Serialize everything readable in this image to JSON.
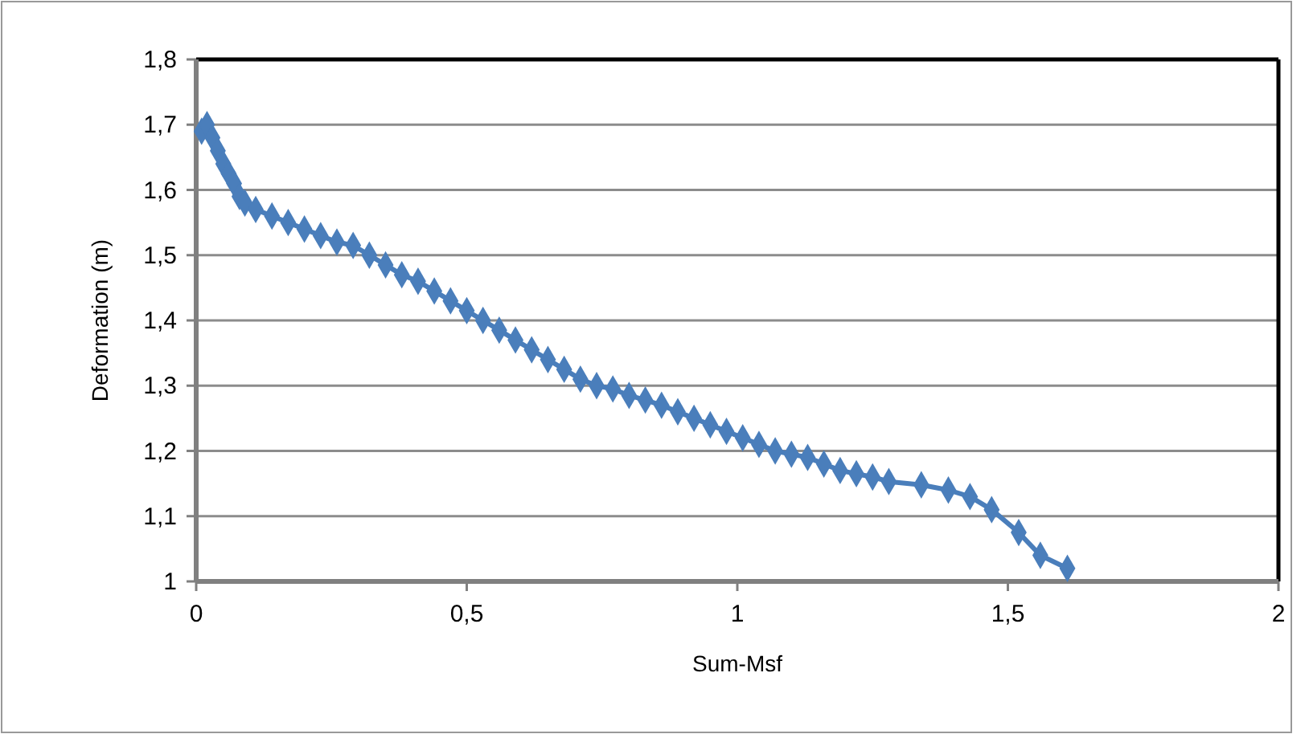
{
  "chart_data": {
    "type": "line",
    "xlabel": "Sum-Msf",
    "ylabel": "Deformation (m)",
    "xlim": [
      0,
      2
    ],
    "xticks": [
      0,
      {
        "value": 0.5,
        "label": "0,5"
      },
      1,
      {
        "value": 1.5,
        "label": "1,5"
      },
      2
    ],
    "ylim": [
      1,
      1.8
    ],
    "yticks": [
      1,
      {
        "value": 1.1,
        "label": "1,1"
      },
      {
        "value": 1.2,
        "label": "1,2"
      },
      {
        "value": 1.3,
        "label": "1,3"
      },
      {
        "value": 1.4,
        "label": "1,4"
      },
      {
        "value": 1.5,
        "label": "1,5"
      },
      {
        "value": 1.6,
        "label": "1,6"
      },
      {
        "value": 1.7,
        "label": "1,7"
      },
      {
        "value": 1.8,
        "label": "1,8"
      }
    ],
    "grid": "y",
    "marker": "diamond",
    "series": [
      {
        "color": "#4a7ebb",
        "x": [
          0.01,
          0.02,
          0.03,
          0.04,
          0.05,
          0.06,
          0.07,
          0.08,
          0.09,
          0.11,
          0.14,
          0.17,
          0.2,
          0.23,
          0.26,
          0.29,
          0.32,
          0.35,
          0.38,
          0.41,
          0.44,
          0.47,
          0.5,
          0.53,
          0.56,
          0.59,
          0.62,
          0.65,
          0.68,
          0.71,
          0.74,
          0.77,
          0.8,
          0.83,
          0.86,
          0.89,
          0.92,
          0.95,
          0.98,
          1.01,
          1.04,
          1.07,
          1.1,
          1.13,
          1.16,
          1.19,
          1.22,
          1.25,
          1.28,
          1.34,
          1.39,
          1.43,
          1.47,
          1.52,
          1.56,
          1.61
        ],
        "values": [
          1.69,
          1.7,
          1.68,
          1.66,
          1.64,
          1.625,
          1.61,
          1.59,
          1.58,
          1.57,
          1.56,
          1.55,
          1.54,
          1.53,
          1.52,
          1.515,
          1.5,
          1.485,
          1.47,
          1.46,
          1.445,
          1.43,
          1.415,
          1.4,
          1.385,
          1.37,
          1.355,
          1.34,
          1.325,
          1.31,
          1.3,
          1.295,
          1.285,
          1.278,
          1.27,
          1.26,
          1.25,
          1.24,
          1.23,
          1.22,
          1.21,
          1.2,
          1.195,
          1.19,
          1.18,
          1.17,
          1.165,
          1.16,
          1.153,
          1.148,
          1.14,
          1.13,
          1.11,
          1.075,
          1.04,
          1.02
        ]
      }
    ]
  }
}
